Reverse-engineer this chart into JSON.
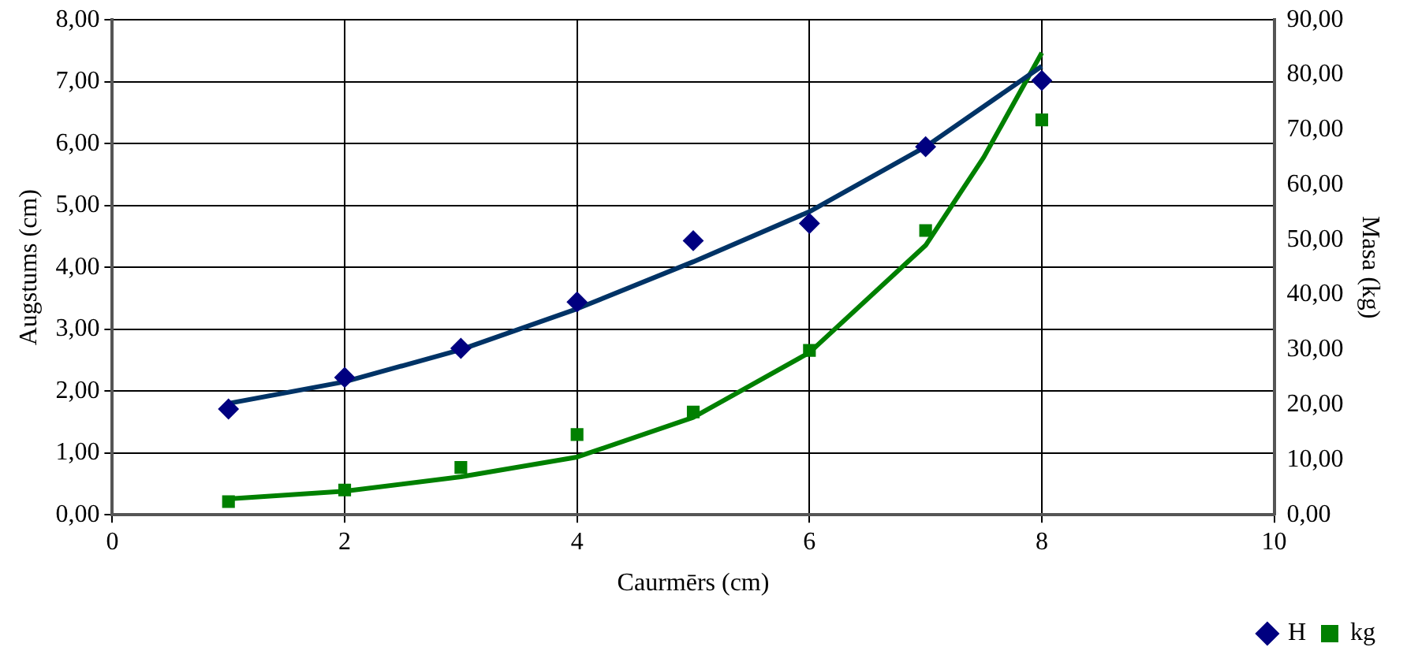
{
  "chart_data": {
    "type": "scatter",
    "xlabel": "Caurmērs (cm)",
    "ylabel": "Augstums (cm)",
    "y2label": "Masa (kg)",
    "xlim": [
      0,
      10
    ],
    "xticks": [
      0,
      2,
      4,
      6,
      8,
      10
    ],
    "ylim": [
      0,
      8
    ],
    "yticks": [
      {
        "value": 0,
        "label": "0,00"
      },
      {
        "value": 1,
        "label": "1,00"
      },
      {
        "value": 2,
        "label": "2,00"
      },
      {
        "value": 3,
        "label": "3,00"
      },
      {
        "value": 4,
        "label": "4,00"
      },
      {
        "value": 5,
        "label": "5,00"
      },
      {
        "value": 6,
        "label": "6,00"
      },
      {
        "value": 7,
        "label": "7,00"
      },
      {
        "value": 8,
        "label": "8,00"
      }
    ],
    "y2lim": [
      0,
      90
    ],
    "y2ticks": [
      {
        "value": 0,
        "label": "0,00"
      },
      {
        "value": 10,
        "label": "10,00"
      },
      {
        "value": 20,
        "label": "20,00"
      },
      {
        "value": 30,
        "label": "30,00"
      },
      {
        "value": 40,
        "label": "40,00"
      },
      {
        "value": 50,
        "label": "50,00"
      },
      {
        "value": 60,
        "label": "60,00"
      },
      {
        "value": 70,
        "label": "70,00"
      },
      {
        "value": 80,
        "label": "80,00"
      },
      {
        "value": 90,
        "label": "90,00"
      }
    ],
    "grid": true,
    "legend": "bottom right",
    "series": [
      {
        "name": "H",
        "marker": "diamond",
        "color": "#000080",
        "x": [
          1,
          2,
          3,
          4,
          5,
          6,
          7,
          8
        ],
        "values": [
          1.71,
          2.22,
          2.69,
          3.44,
          4.43,
          4.71,
          5.95,
          7.02
        ]
      },
      {
        "name": "kg",
        "marker": "square",
        "color": "#008000",
        "axis": "y2",
        "x": [
          1,
          2,
          3,
          4,
          5,
          6,
          7,
          8
        ],
        "values": [
          2.4,
          4.5,
          8.6,
          14.6,
          18.7,
          29.9,
          51.7,
          71.8
        ]
      },
      {
        "type": "line",
        "marker": "none",
        "color": "#003366",
        "x": [
          1,
          2,
          3,
          4,
          5,
          6,
          7,
          8
        ],
        "values": [
          1.8,
          2.15,
          2.67,
          3.33,
          4.09,
          4.9,
          5.95,
          7.25
        ]
      },
      {
        "type": "line",
        "marker": "none",
        "color": "#008000",
        "axis": "y2",
        "x": [
          1,
          2,
          3,
          4,
          5,
          6,
          7,
          7.5,
          8
        ],
        "values": [
          2.9,
          4.3,
          6.9,
          10.5,
          17.7,
          29.5,
          49,
          65,
          84
        ]
      }
    ]
  }
}
